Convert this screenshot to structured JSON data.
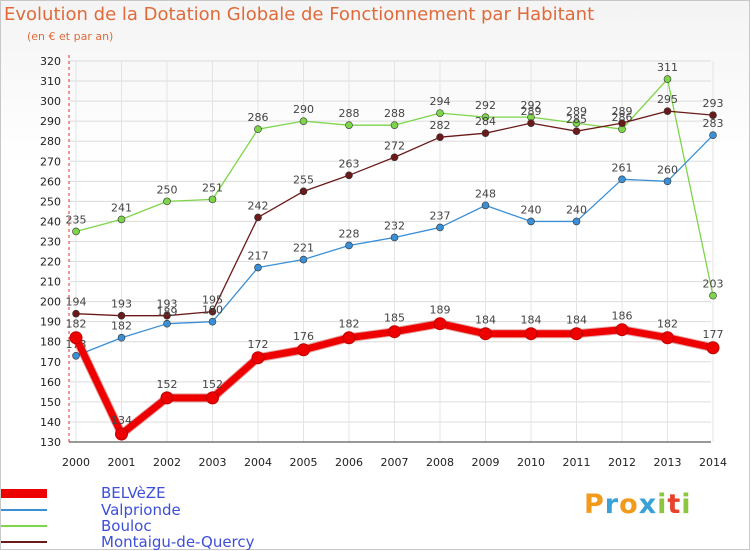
{
  "title": "Evolution de la Dotation Globale de Fonctionnement par Habitant",
  "subtitle": "(en € et par an)",
  "logo": {
    "letters": [
      "P",
      "r",
      "o",
      "x",
      "i",
      "t",
      "i"
    ],
    "colors": [
      "#f29a1c",
      "#3aa0d8",
      "#f29a1c",
      "#3aa0d8",
      "#8cc63f",
      "#e8412c",
      "#8cc63f"
    ]
  },
  "chart_data": {
    "type": "line",
    "x": [
      "2000",
      "2001",
      "2002",
      "2003",
      "2004",
      "2005",
      "2006",
      "2007",
      "2008",
      "2009",
      "2010",
      "2011",
      "2012",
      "2013",
      "2014"
    ],
    "ylim": [
      130,
      320
    ],
    "yticks": [
      130,
      140,
      150,
      160,
      170,
      180,
      190,
      200,
      210,
      220,
      230,
      240,
      250,
      260,
      270,
      280,
      290,
      300,
      310,
      320
    ],
    "grid": true,
    "legend_position": "bottom-left",
    "series": [
      {
        "name": "BELVèZE",
        "color": "#ee0000",
        "values": [
          182,
          134,
          152,
          152,
          172,
          176,
          182,
          185,
          189,
          184,
          184,
          184,
          186,
          182,
          177
        ]
      },
      {
        "name": "Valprionde",
        "color": "#3a8fd6",
        "values": [
          173,
          182,
          189,
          190,
          217,
          221,
          228,
          232,
          237,
          248,
          240,
          240,
          261,
          260,
          283
        ]
      },
      {
        "name": "Bouloc",
        "color": "#7dd54a",
        "values": [
          235,
          241,
          250,
          251,
          286,
          290,
          288,
          288,
          294,
          292,
          292,
          289,
          286,
          311,
          203
        ]
      },
      {
        "name": "Montaigu-de-Quercy",
        "color": "#6b1a1a",
        "values": [
          194,
          193,
          193,
          195,
          242,
          255,
          263,
          272,
          282,
          284,
          289,
          285,
          289,
          295,
          293
        ]
      }
    ]
  }
}
